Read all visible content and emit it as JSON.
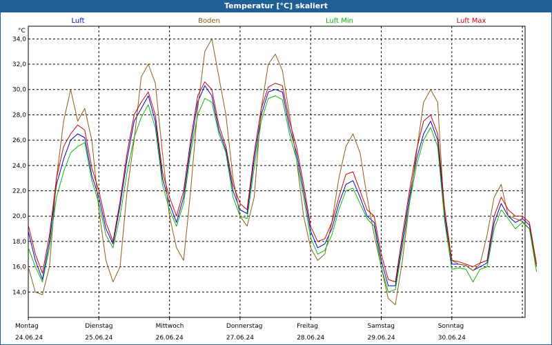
{
  "window": {
    "title": "Temperatur [°C] skaliert"
  },
  "chart_data": {
    "type": "line",
    "title": "Temperatur [°C] skaliert",
    "ylabel": "°C",
    "ylim": [
      12.0,
      35.0
    ],
    "yticks": [
      "14,0",
      "16,0",
      "18,0",
      "20,0",
      "22,0",
      "24,0",
      "26,0",
      "28,0",
      "30,0",
      "32,0",
      "34,0"
    ],
    "ytick_values": [
      14,
      16,
      18,
      20,
      22,
      24,
      26,
      28,
      30,
      32,
      34
    ],
    "xlim": [
      0,
      7.2
    ],
    "days": [
      {
        "name": "Montag",
        "date": "24.06.24"
      },
      {
        "name": "Dienstag",
        "date": "25.06.24"
      },
      {
        "name": "Mittwoch",
        "date": "26.06.24"
      },
      {
        "name": "Donnerstag",
        "date": "27.06.24"
      },
      {
        "name": "Freitag",
        "date": "28.06.24"
      },
      {
        "name": "Samstag",
        "date": "29.06.24"
      },
      {
        "name": "Sonntag",
        "date": "30.06.24"
      }
    ],
    "grid": true,
    "legend_position": "top",
    "x": [
      0.0,
      0.1,
      0.2,
      0.3,
      0.4,
      0.5,
      0.6,
      0.7,
      0.8,
      0.9,
      1.0,
      1.1,
      1.2,
      1.3,
      1.4,
      1.5,
      1.6,
      1.7,
      1.8,
      1.9,
      2.0,
      2.1,
      2.2,
      2.3,
      2.4,
      2.5,
      2.6,
      2.7,
      2.8,
      2.9,
      3.0,
      3.1,
      3.2,
      3.3,
      3.4,
      3.5,
      3.6,
      3.7,
      3.8,
      3.9,
      4.0,
      4.1,
      4.2,
      4.3,
      4.4,
      4.5,
      4.6,
      4.7,
      4.8,
      4.9,
      5.0,
      5.1,
      5.2,
      5.3,
      5.4,
      5.5,
      5.6,
      5.7,
      5.8,
      5.9,
      6.0,
      6.1,
      6.2,
      6.3,
      6.4,
      6.5,
      6.6,
      6.7,
      6.8,
      6.9,
      7.0,
      7.1,
      7.2
    ],
    "series": [
      {
        "name": "Luft",
        "color": "#0000c8",
        "values": [
          18.8,
          16.5,
          15.0,
          18.0,
          22.5,
          24.5,
          26.0,
          26.5,
          26.2,
          23.2,
          21.5,
          19.0,
          17.8,
          20.8,
          24.5,
          27.5,
          28.5,
          29.5,
          27.5,
          23.0,
          21.0,
          19.5,
          21.5,
          25.5,
          29.0,
          30.3,
          29.5,
          26.8,
          25.2,
          22.0,
          20.5,
          20.2,
          24.5,
          28.0,
          29.8,
          30.0,
          29.8,
          27.0,
          25.0,
          22.0,
          18.8,
          17.5,
          17.8,
          19.0,
          21.0,
          22.5,
          22.8,
          21.5,
          20.0,
          19.5,
          16.5,
          14.5,
          14.5,
          18.0,
          21.5,
          24.5,
          26.5,
          27.5,
          26.0,
          20.0,
          16.2,
          16.2,
          16.1,
          15.7,
          16.0,
          16.3,
          19.5,
          21.0,
          20.0,
          19.5,
          19.8,
          19.3,
          16.0
        ]
      },
      {
        "name": "Boden",
        "color": "#8b5a14",
        "values": [
          16.0,
          14.0,
          13.8,
          16.0,
          23.0,
          27.5,
          30.0,
          27.5,
          28.5,
          26.0,
          20.5,
          16.5,
          14.8,
          16.0,
          22.0,
          26.0,
          31.0,
          32.0,
          30.5,
          25.0,
          20.0,
          17.5,
          16.5,
          22.0,
          28.5,
          33.0,
          34.0,
          31.0,
          28.0,
          23.0,
          20.0,
          19.2,
          21.5,
          28.5,
          32.0,
          32.8,
          31.5,
          28.0,
          24.5,
          20.0,
          17.5,
          16.5,
          17.0,
          19.5,
          23.0,
          25.5,
          26.5,
          25.0,
          21.5,
          18.5,
          16.0,
          13.5,
          13.0,
          16.5,
          21.0,
          25.0,
          29.0,
          30.0,
          29.0,
          19.5,
          16.5,
          16.2,
          16.1,
          15.7,
          16.2,
          18.5,
          21.5,
          22.5,
          20.0,
          19.8,
          19.6,
          19.0,
          16.0
        ]
      },
      {
        "name": "Luft Min",
        "color": "#0ab40a",
        "values": [
          17.5,
          16.0,
          14.8,
          17.5,
          21.5,
          23.5,
          25.0,
          25.5,
          25.8,
          22.8,
          21.0,
          18.5,
          17.5,
          20.0,
          23.5,
          26.2,
          27.8,
          28.8,
          27.0,
          22.5,
          20.5,
          19.2,
          21.0,
          25.0,
          28.0,
          29.3,
          29.0,
          26.5,
          25.0,
          21.5,
          20.0,
          19.8,
          23.8,
          27.5,
          29.3,
          29.5,
          29.2,
          26.5,
          24.5,
          21.5,
          18.3,
          17.0,
          17.3,
          18.5,
          20.5,
          22.0,
          22.2,
          21.0,
          19.8,
          19.2,
          16.0,
          14.0,
          14.2,
          17.5,
          21.0,
          24.0,
          26.0,
          27.0,
          25.5,
          19.5,
          15.8,
          15.9,
          15.8,
          14.8,
          15.8,
          16.0,
          19.0,
          20.5,
          19.8,
          19.0,
          19.5,
          19.0,
          15.6
        ]
      },
      {
        "name": "Luft Max",
        "color": "#c80000",
        "values": [
          19.3,
          17.0,
          15.5,
          18.5,
          23.0,
          25.5,
          26.5,
          27.2,
          26.8,
          23.8,
          22.0,
          19.5,
          18.0,
          21.2,
          25.0,
          28.0,
          29.0,
          29.8,
          28.0,
          23.5,
          21.5,
          20.0,
          22.0,
          26.0,
          29.5,
          30.6,
          30.0,
          27.2,
          25.5,
          22.5,
          21.0,
          20.5,
          25.0,
          28.5,
          30.2,
          30.5,
          30.3,
          27.5,
          25.5,
          22.5,
          19.2,
          18.0,
          18.2,
          19.5,
          21.5,
          23.3,
          23.5,
          22.0,
          20.5,
          20.0,
          17.0,
          15.0,
          14.8,
          18.5,
          22.0,
          25.2,
          27.5,
          28.0,
          26.5,
          20.5,
          16.5,
          16.4,
          16.2,
          16.0,
          16.3,
          16.5,
          20.0,
          21.5,
          20.5,
          20.0,
          20.0,
          19.5,
          16.2
        ]
      }
    ]
  }
}
